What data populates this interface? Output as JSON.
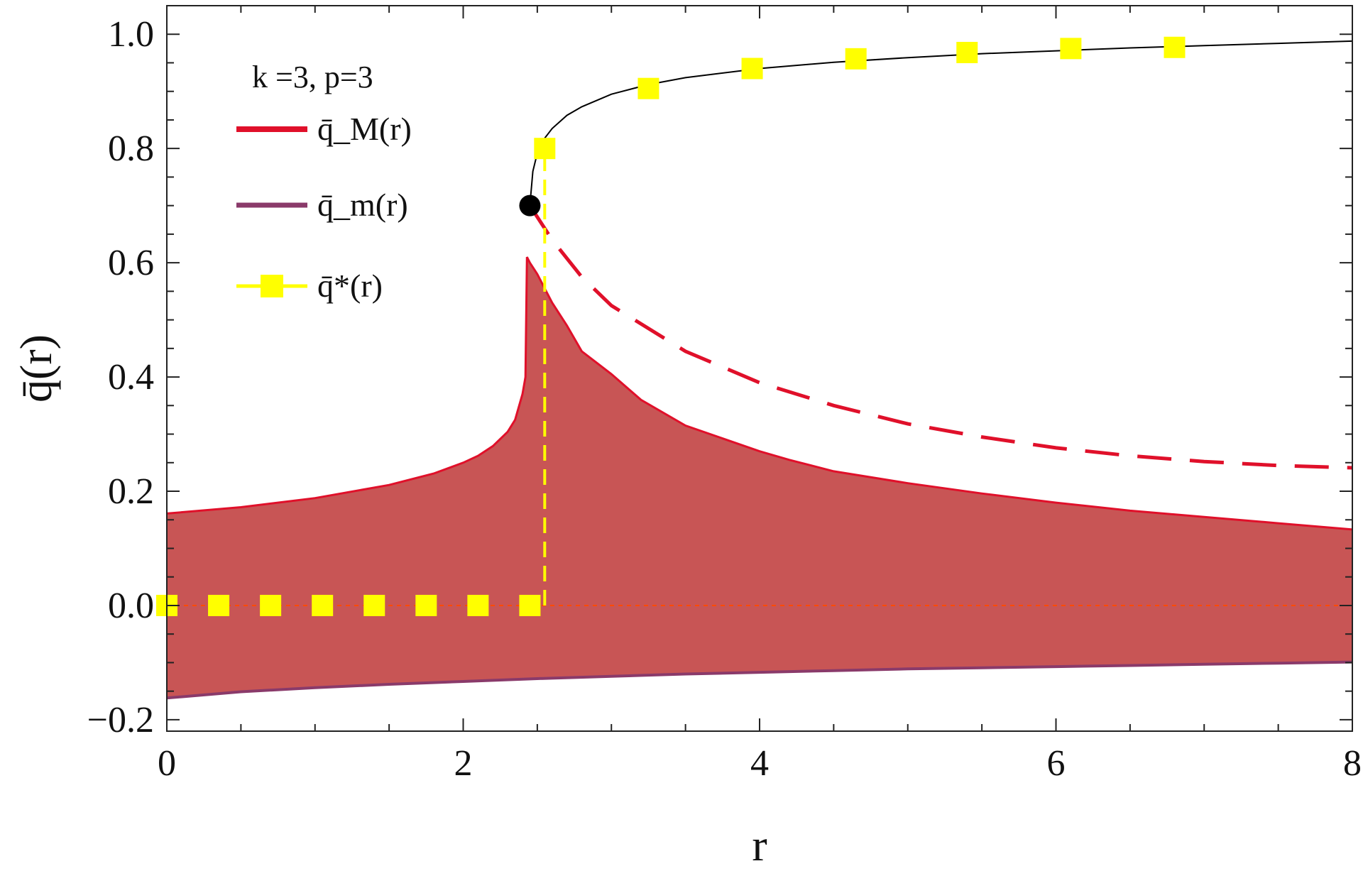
{
  "chart_data": {
    "type": "line",
    "title": "",
    "xlabel": "r",
    "ylabel": "q̄(r)",
    "xlim": [
      0,
      8
    ],
    "ylim": [
      -0.22,
      1.05
    ],
    "x_ticks": [
      0,
      2,
      4,
      6,
      8
    ],
    "x_tick_labels": [
      "0",
      "2",
      "4",
      "6",
      "8"
    ],
    "y_ticks": [
      -0.2,
      0.0,
      0.2,
      0.4,
      0.6,
      0.8,
      1.0
    ],
    "y_tick_labels": [
      "−0.2",
      "0.0",
      "0.2",
      "0.4",
      "0.6",
      "0.8",
      "1.0"
    ],
    "grid": false,
    "legend_title": "k =3, p=3",
    "legend_position": "top-left",
    "series": [
      {
        "name": "q̄_M(r)",
        "color": "#e0102a",
        "x": [
          0,
          0.5,
          1.0,
          1.5,
          1.8,
          2.0,
          2.1,
          2.2,
          2.3,
          2.35,
          2.4,
          2.42,
          2.43,
          2.45,
          2.5,
          2.55,
          2.6,
          2.7,
          2.8,
          3.0,
          3.2,
          3.5,
          4.0,
          4.2,
          4.5,
          5.0,
          5.5,
          6.0,
          6.5,
          7.0,
          7.5,
          8.0
        ],
        "values": [
          0.161,
          0.172,
          0.188,
          0.211,
          0.231,
          0.25,
          0.262,
          0.279,
          0.304,
          0.325,
          0.37,
          0.4,
          0.61,
          0.6,
          0.58,
          0.555,
          0.53,
          0.49,
          0.445,
          0.405,
          0.36,
          0.315,
          0.27,
          0.255,
          0.235,
          0.214,
          0.196,
          0.18,
          0.166,
          0.155,
          0.144,
          0.133
        ]
      },
      {
        "name": "q̄_m(r)",
        "color": "#8a3a6a",
        "x": [
          0,
          0.5,
          1.0,
          1.5,
          2.0,
          2.5,
          3.0,
          3.5,
          4.0,
          4.5,
          5.0,
          5.5,
          6.0,
          6.5,
          7.0,
          7.5,
          8.0
        ],
        "values": [
          -0.162,
          -0.151,
          -0.144,
          -0.138,
          -0.133,
          -0.128,
          -0.124,
          -0.12,
          -0.117,
          -0.114,
          -0.111,
          -0.109,
          -0.107,
          -0.105,
          -0.103,
          -0.101,
          -0.099
        ]
      },
      {
        "name": "q̄*(r)",
        "color": "#ffff00",
        "x": [
          0,
          0.35,
          0.7,
          1.05,
          1.4,
          1.75,
          2.1,
          2.45,
          2.55,
          3.25,
          3.95,
          4.65,
          5.4,
          6.1,
          6.8
        ],
        "values": [
          0.0,
          0.0,
          0.0,
          0.0,
          0.0,
          0.0,
          0.0,
          0.0,
          0.8,
          0.905,
          0.94,
          0.957,
          0.968,
          0.975,
          0.977
        ]
      }
    ],
    "upper_branch_solid": {
      "color": "#000000",
      "x": [
        2.45,
        2.47,
        2.5,
        2.55,
        2.6,
        2.7,
        2.8,
        3.0,
        3.25,
        3.5,
        4.0,
        4.5,
        5.0,
        5.5,
        6.0,
        6.5,
        7.0,
        7.5,
        8.0
      ],
      "values": [
        0.7,
        0.76,
        0.792,
        0.818,
        0.835,
        0.858,
        0.873,
        0.895,
        0.912,
        0.924,
        0.94,
        0.951,
        0.959,
        0.966,
        0.971,
        0.976,
        0.98,
        0.984,
        0.988
      ]
    },
    "unstable_branch_dashed": {
      "color": "#e0102a",
      "x": [
        2.45,
        2.5,
        2.6,
        2.8,
        3.0,
        3.5,
        4.0,
        4.5,
        5.0,
        5.5,
        6.0,
        6.5,
        7.0,
        7.5,
        8.0
      ],
      "values": [
        0.7,
        0.68,
        0.64,
        0.575,
        0.525,
        0.445,
        0.39,
        0.35,
        0.318,
        0.295,
        0.276,
        0.262,
        0.252,
        0.245,
        0.241
      ]
    },
    "transition_dashed": {
      "color": "#ffff00",
      "x": [
        2.55,
        2.55
      ],
      "values": [
        0.0,
        0.8
      ]
    },
    "zero_line": {
      "color": "#ff4a00",
      "y": 0.0
    },
    "fill_between": {
      "color": "#c85555"
    },
    "critical_point": {
      "x": 2.45,
      "y": 0.7,
      "color": "#000000"
    }
  }
}
